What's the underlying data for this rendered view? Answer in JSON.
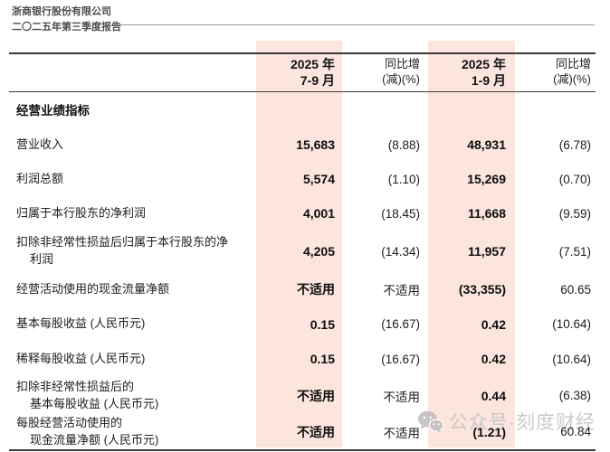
{
  "header": {
    "company": "浙商银行股份有限公司",
    "report_title": "二〇二五年第三季度报告"
  },
  "table": {
    "headers": {
      "col1_line1": "2025 年",
      "col1_line2": "7-9 月",
      "col2_line1": "同比增",
      "col2_line2": "(减)(%)",
      "col3_line1": "2025 年",
      "col3_line2": "1-9 月",
      "col4_line1": "同比增",
      "col4_line2": "(减)(%)"
    },
    "section_title": "经营业绩指标",
    "rows": [
      {
        "label": "营业收入",
        "values": [
          "15,683",
          "(8.88)",
          "48,931",
          "(6.78)"
        ]
      },
      {
        "label": "利润总额",
        "values": [
          "5,574",
          "(1.10)",
          "15,269",
          "(0.70)"
        ]
      },
      {
        "label": "归属于本行股东的净利润",
        "values": [
          "4,001",
          "(18.45)",
          "11,668",
          "(9.59)"
        ]
      },
      {
        "label": "扣除非经常性损益后归属于本行股东的净",
        "label2": "利润",
        "values": [
          "4,205",
          "(14.34)",
          "11,957",
          "(7.51)"
        ]
      },
      {
        "label": "经营活动使用的现金流量净额",
        "values": [
          "不适用",
          "不适用",
          "(33,355)",
          "60.65"
        ]
      },
      {
        "label": "基本每股收益 (人民币元)",
        "values": [
          "0.15",
          "(16.67)",
          "0.42",
          "(10.64)"
        ]
      },
      {
        "label": "稀释每股收益 (人民币元)",
        "values": [
          "0.15",
          "(16.67)",
          "0.42",
          "(10.64)"
        ]
      },
      {
        "label": "扣除非经常性损益后的",
        "label2": "基本每股收益 (人民币元)",
        "values": [
          "不适用",
          "不适用",
          "0.44",
          "(6.38)"
        ]
      },
      {
        "label": "每股经营活动使用的",
        "label2": "现金流量净额 (人民币元)",
        "values": [
          "不适用",
          "不适用",
          "(1.21)",
          "60.84"
        ]
      }
    ]
  },
  "watermark": {
    "icon": "wechat-icon",
    "text": "公众号·刻度财经"
  },
  "colors": {
    "highlight_pink": "#fbe5dd",
    "table_border": "#3a3a3a",
    "watermark_gray": "#c3c3c3"
  }
}
